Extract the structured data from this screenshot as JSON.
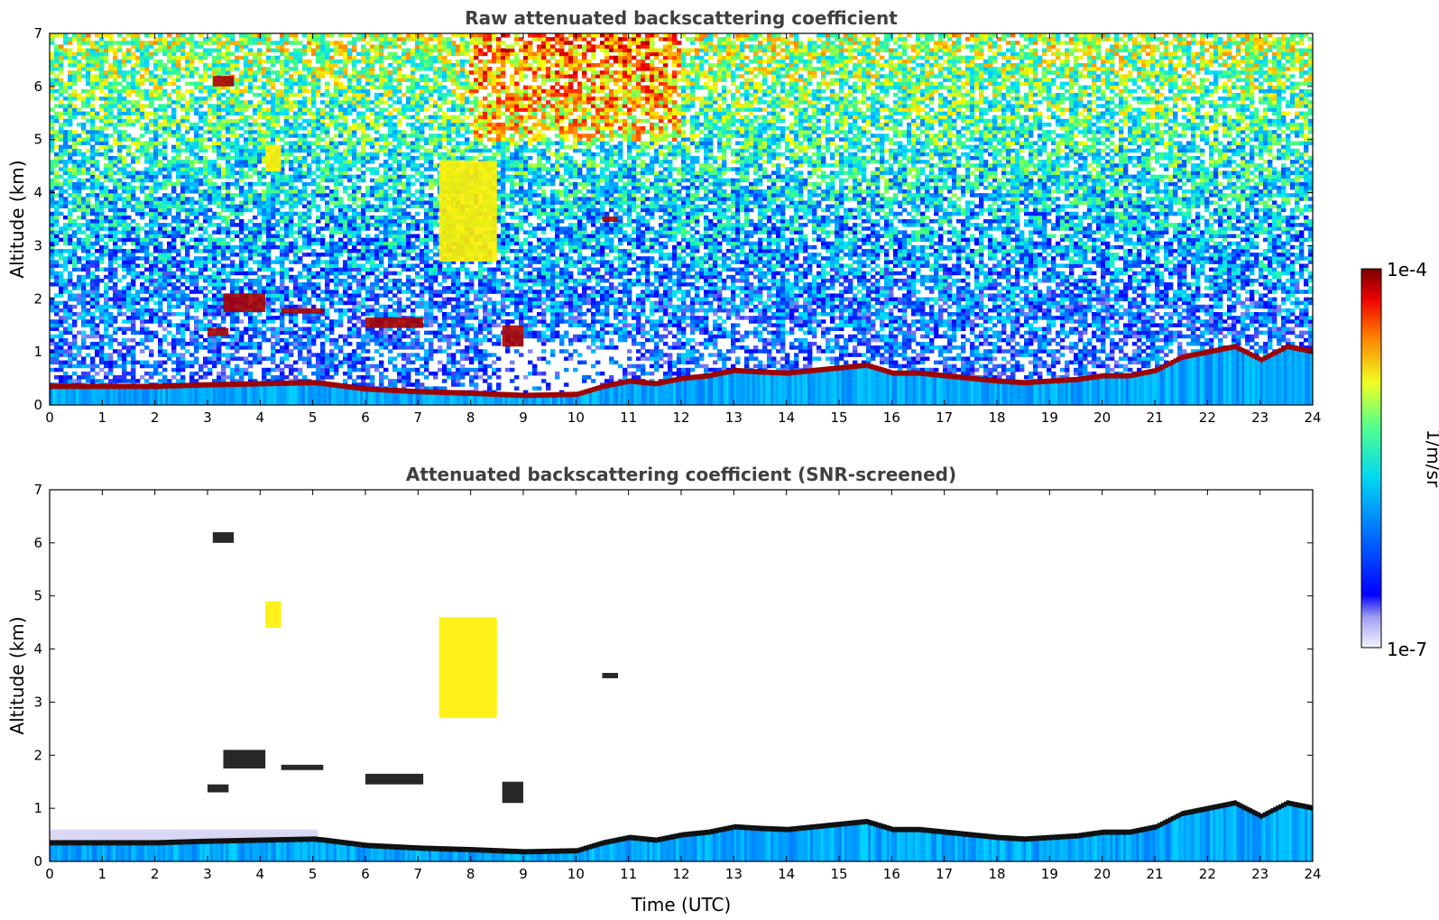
{
  "chart_data": [
    {
      "type": "heatmap",
      "title": "Raw attenuated backscattering coefficient",
      "xlabel": "",
      "ylabel": "Altitude (km)",
      "xlim": [
        0,
        24
      ],
      "ylim": [
        0,
        7
      ],
      "x_ticks": [
        "0",
        "1",
        "2",
        "3",
        "4",
        "5",
        "6",
        "7",
        "8",
        "9",
        "10",
        "11",
        "12",
        "13",
        "14",
        "15",
        "16",
        "17",
        "18",
        "19",
        "20",
        "21",
        "22",
        "23",
        "24"
      ],
      "y_ticks": [
        "0",
        "1",
        "2",
        "3",
        "4",
        "5",
        "6",
        "7"
      ],
      "screened": false,
      "layer_top_km": [
        [
          0,
          0.35
        ],
        [
          1,
          0.35
        ],
        [
          2,
          0.35
        ],
        [
          3,
          0.38
        ],
        [
          4,
          0.4
        ],
        [
          5,
          0.42
        ],
        [
          5.2,
          0.4
        ],
        [
          6,
          0.3
        ],
        [
          7,
          0.25
        ],
        [
          8,
          0.22
        ],
        [
          9,
          0.18
        ],
        [
          10,
          0.2
        ],
        [
          10.5,
          0.35
        ],
        [
          11,
          0.45
        ],
        [
          11.5,
          0.4
        ],
        [
          12,
          0.5
        ],
        [
          12.5,
          0.55
        ],
        [
          13,
          0.65
        ],
        [
          13.5,
          0.62
        ],
        [
          14,
          0.6
        ],
        [
          14.5,
          0.65
        ],
        [
          15,
          0.7
        ],
        [
          15.5,
          0.75
        ],
        [
          16,
          0.6
        ],
        [
          16.5,
          0.6
        ],
        [
          17,
          0.55
        ],
        [
          17.5,
          0.5
        ],
        [
          18,
          0.45
        ],
        [
          18.5,
          0.42
        ],
        [
          19,
          0.45
        ],
        [
          19.5,
          0.48
        ],
        [
          20,
          0.55
        ],
        [
          20.5,
          0.55
        ],
        [
          21,
          0.65
        ],
        [
          21.5,
          0.9
        ],
        [
          22,
          1.0
        ],
        [
          22.5,
          1.1
        ],
        [
          23,
          0.85
        ],
        [
          23.5,
          1.1
        ],
        [
          24,
          1.0
        ]
      ],
      "cloud_features": [
        {
          "x": [
            3.0,
            3.4
          ],
          "alt_km": [
            1.3,
            1.45
          ],
          "level": "high"
        },
        {
          "x": [
            3.3,
            4.1
          ],
          "alt_km": [
            1.75,
            2.1
          ],
          "level": "high"
        },
        {
          "x": [
            4.4,
            5.2
          ],
          "alt_km": [
            1.72,
            1.82
          ],
          "level": "high"
        },
        {
          "x": [
            6.0,
            7.1
          ],
          "alt_km": [
            1.45,
            1.65
          ],
          "level": "high"
        },
        {
          "x": [
            7.4,
            8.5
          ],
          "alt_km": [
            2.7,
            4.6
          ],
          "level": "mid"
        },
        {
          "x": [
            4.1,
            4.4
          ],
          "alt_km": [
            4.4,
            4.9
          ],
          "level": "mid"
        },
        {
          "x": [
            3.1,
            3.5
          ],
          "alt_km": [
            6.0,
            6.2
          ],
          "level": "high"
        },
        {
          "x": [
            10.5,
            10.8
          ],
          "alt_km": [
            3.45,
            3.55
          ],
          "level": "high"
        },
        {
          "x": [
            8.6,
            9.0
          ],
          "alt_km": [
            1.1,
            1.5
          ],
          "level": "high"
        }
      ]
    },
    {
      "type": "heatmap",
      "title": "Attenuated backscattering coefficient (SNR-screened)",
      "xlabel": "Time (UTC)",
      "ylabel": "Altitude (km)",
      "xlim": [
        0,
        24
      ],
      "ylim": [
        0,
        7
      ],
      "x_ticks": [
        "0",
        "1",
        "2",
        "3",
        "4",
        "5",
        "6",
        "7",
        "8",
        "9",
        "10",
        "11",
        "12",
        "13",
        "14",
        "15",
        "16",
        "17",
        "18",
        "19",
        "20",
        "21",
        "22",
        "23",
        "24"
      ],
      "y_ticks": [
        "0",
        "1",
        "2",
        "3",
        "4",
        "5",
        "6",
        "7"
      ],
      "screened": true
    }
  ],
  "colorbar": {
    "label": "1/m/sr",
    "min_label": "1e-7",
    "max_label": "1e-4",
    "scale": "log",
    "colormap": [
      "#ffffff",
      "#c8c8f0",
      "#0000ff",
      "#0080ff",
      "#00e0ff",
      "#40ff80",
      "#ffff00",
      "#ff8000",
      "#ff0000",
      "#7a0000"
    ]
  }
}
